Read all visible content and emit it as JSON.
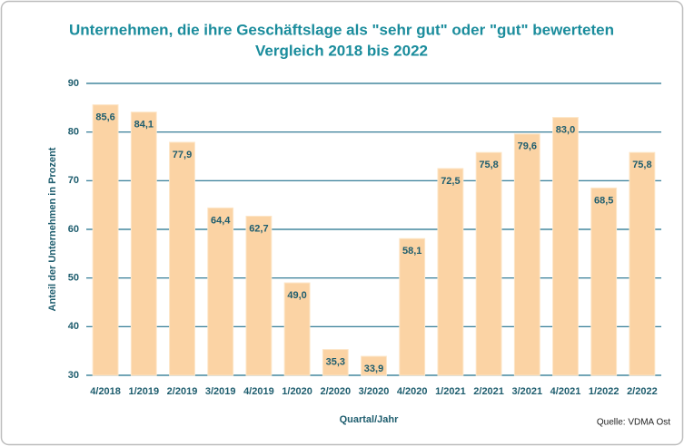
{
  "chart_data": {
    "type": "bar",
    "title": "Unternehmen, die ihre Geschäftslage als \"sehr gut\" oder \"gut\" bewerteten",
    "subtitle": "Vergleich 2018 bis 2022",
    "x_label": "Quartal/Jahr",
    "y_label": "Anteil der Unternehmen in Prozent",
    "source": "Quelle: VDMA Ost",
    "categories": [
      "4/2018",
      "1/2019",
      "2/2019",
      "3/2019",
      "4/2019",
      "1/2020",
      "2/2020",
      "3/2020",
      "4/2020",
      "1/2021",
      "2/2021",
      "3/2021",
      "4/2021",
      "1/2022",
      "2/2022"
    ],
    "values": [
      85.6,
      84.1,
      77.9,
      64.4,
      62.7,
      49.0,
      35.3,
      33.9,
      58.1,
      72.5,
      75.8,
      79.6,
      83.0,
      68.5,
      75.8
    ],
    "value_labels": [
      "85,6",
      "84,1",
      "77,9",
      "64,4",
      "62,7",
      "49,0",
      "35,3",
      "33,9",
      "58,1",
      "72,5",
      "75,8",
      "79,6",
      "83,0",
      "68,5",
      "75,8"
    ],
    "color": "#fbd3a4",
    "ylim": [
      30,
      90
    ],
    "yticks": [
      30,
      40,
      50,
      60,
      70,
      80,
      90
    ],
    "grid": true
  }
}
